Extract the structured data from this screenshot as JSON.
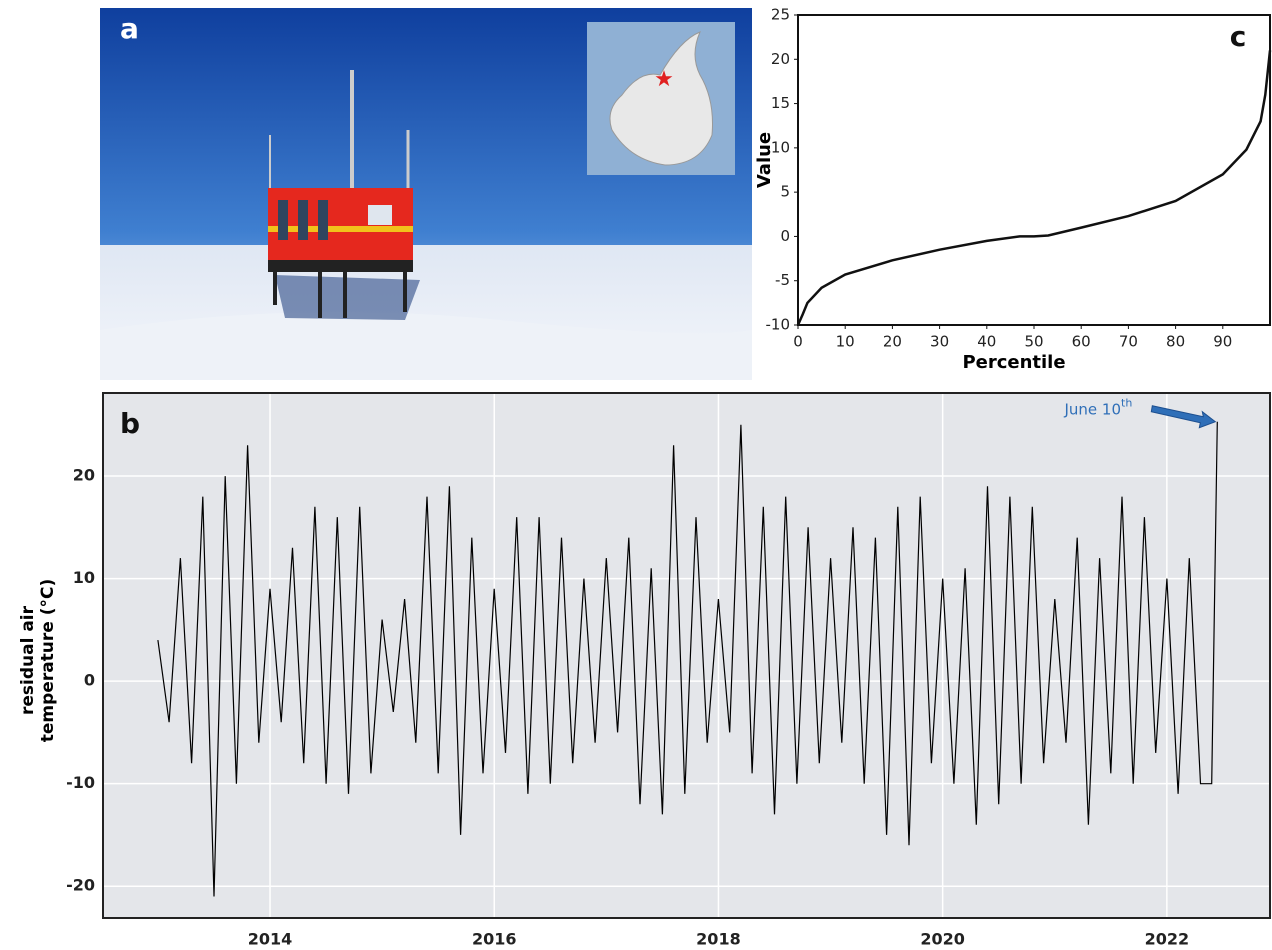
{
  "photo": {
    "label": "a"
  },
  "chart_data": [
    {
      "type": "line",
      "panel_label": "c",
      "x_label": "Percentile",
      "y_label": "Value",
      "x": [
        0,
        1,
        2,
        5,
        10,
        20,
        30,
        40,
        47,
        50,
        53,
        60,
        70,
        80,
        90,
        95,
        98,
        99,
        100
      ],
      "values": [
        -10,
        -8.8,
        -7.5,
        -5.8,
        -4.3,
        -2.7,
        -1.5,
        -0.5,
        0,
        0,
        0.1,
        1,
        2.3,
        4,
        7,
        9.8,
        13,
        16,
        21
      ],
      "color": "#111111",
      "xlim": [
        0,
        100
      ],
      "ylim": [
        -10,
        25
      ],
      "xticks": [
        0,
        10,
        20,
        30,
        40,
        50,
        60,
        70,
        80,
        90
      ],
      "yticks": [
        -10,
        -5,
        0,
        5,
        10,
        15,
        20,
        25
      ],
      "grid": false
    },
    {
      "type": "line",
      "panel_label": "b",
      "y_label": [
        "residual air",
        "temperature (°C)"
      ],
      "x": [
        2013.0,
        2013.1,
        2013.2,
        2013.3,
        2013.4,
        2013.5,
        2013.6,
        2013.7,
        2013.8,
        2013.9,
        2014.0,
        2014.1,
        2014.2,
        2014.3,
        2014.4,
        2014.5,
        2014.6,
        2014.7,
        2014.8,
        2014.9,
        2015.0,
        2015.1,
        2015.2,
        2015.3,
        2015.4,
        2015.5,
        2015.6,
        2015.7,
        2015.8,
        2015.9,
        2016.0,
        2016.1,
        2016.2,
        2016.3,
        2016.4,
        2016.5,
        2016.6,
        2016.7,
        2016.8,
        2016.9,
        2017.0,
        2017.1,
        2017.2,
        2017.3,
        2017.4,
        2017.5,
        2017.6,
        2017.7,
        2017.8,
        2017.9,
        2018.0,
        2018.1,
        2018.2,
        2018.3,
        2018.4,
        2018.5,
        2018.6,
        2018.7,
        2018.8,
        2018.9,
        2019.0,
        2019.1,
        2019.2,
        2019.3,
        2019.4,
        2019.5,
        2019.6,
        2019.7,
        2019.8,
        2019.9,
        2020.0,
        2020.1,
        2020.2,
        2020.3,
        2020.4,
        2020.5,
        2020.6,
        2020.7,
        2020.8,
        2020.9,
        2021.0,
        2021.1,
        2021.2,
        2021.3,
        2021.4,
        2021.5,
        2021.6,
        2021.7,
        2021.8,
        2021.9,
        2022.0,
        2022.1,
        2022.2,
        2022.3,
        2022.4,
        2022.45
      ],
      "values": [
        4,
        -4,
        12,
        -8,
        18,
        -21,
        20,
        -10,
        23,
        -6,
        9,
        -4,
        13,
        -8,
        17,
        -10,
        16,
        -11,
        17,
        -9,
        6,
        -3,
        8,
        -6,
        18,
        -9,
        19,
        -15,
        14,
        -9,
        9,
        -7,
        16,
        -11,
        16,
        -10,
        14,
        -8,
        10,
        -6,
        12,
        -5,
        14,
        -12,
        11,
        -13,
        23,
        -11,
        16,
        -6,
        8,
        -5,
        25,
        -9,
        17,
        -13,
        18,
        -10,
        15,
        -8,
        12,
        -6,
        15,
        -10,
        14,
        -15,
        17,
        -16,
        18,
        -8,
        10,
        -10,
        11,
        -14,
        19,
        -12,
        18,
        -10,
        17,
        -8,
        8,
        -6,
        14,
        -14,
        12,
        -9,
        18,
        -10,
        16,
        -7,
        10,
        -11,
        12,
        -10,
        -10,
        25.3
      ],
      "color": "#000000",
      "xlim": [
        2012.51,
        2022.92
      ],
      "ylim": [
        -23.1,
        28.1
      ],
      "xticks": [
        2014,
        2016,
        2018,
        2020,
        2022
      ],
      "yticks": [
        -20,
        -10,
        0,
        10,
        20
      ],
      "grid": true,
      "background": "#e4e6ea",
      "annotation": {
        "text": "June 10",
        "superscript": "th",
        "color": "#2f6fb8",
        "x": 2022.45,
        "y": 25.3
      }
    }
  ]
}
